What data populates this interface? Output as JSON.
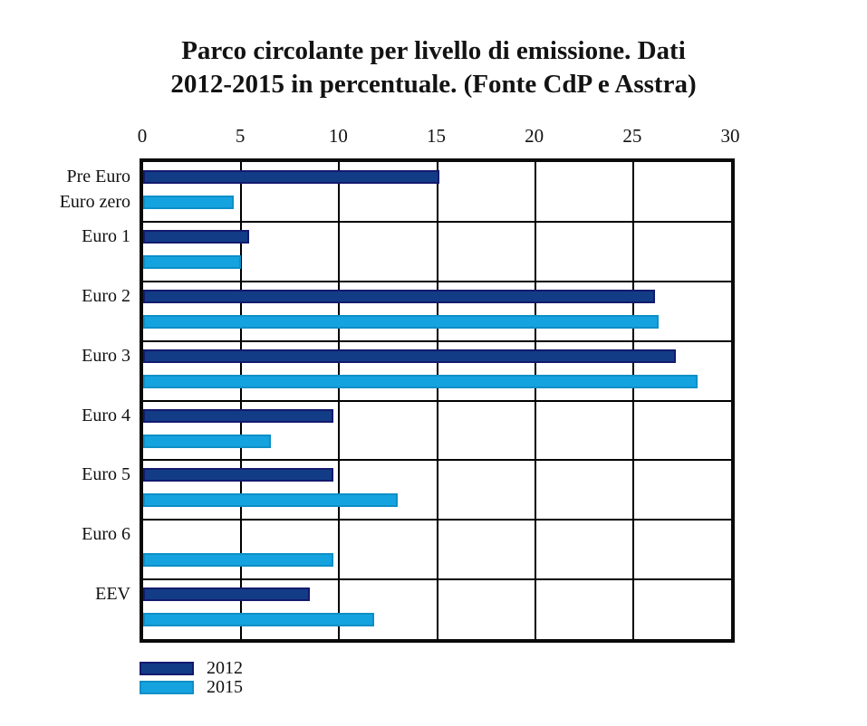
{
  "title_lines": [
    "Parco circolante per livello di emissione. Dati",
    "2012-2015 in percentuale. (Fonte CdP e Asstra)"
  ],
  "chart_data": {
    "type": "bar",
    "orientation": "horizontal",
    "title": "Parco circolante per livello di emissione. Dati 2012-2015 in percentuale. (Fonte CdP e Asstra)",
    "units": "percent",
    "categories": [
      [
        "Pre Euro",
        "Euro zero"
      ],
      [
        "Euro 1"
      ],
      [
        "Euro 2"
      ],
      [
        "Euro 3"
      ],
      [
        "Euro 4"
      ],
      [
        "Euro 5"
      ],
      [
        "Euro 6"
      ],
      [
        "EEV"
      ]
    ],
    "series": [
      {
        "name": "2012",
        "color": "#123c86",
        "border_color": "#141a6e",
        "values": [
          15.1,
          5.4,
          26.1,
          27.2,
          9.7,
          9.7,
          null,
          8.5
        ]
      },
      {
        "name": "2015",
        "color": "#15a3e0",
        "border_color": "#0d8fc6",
        "values": [
          4.6,
          5.0,
          26.3,
          28.3,
          6.5,
          13.0,
          9.7,
          11.8
        ]
      }
    ],
    "x_ticks": [
      0,
      5,
      10,
      15,
      20,
      25,
      30
    ],
    "xlim": [
      0,
      30
    ],
    "grid": true,
    "legend_position": "bottom-left",
    "plot_border_color": "#0a0a0a",
    "grid_color": "#000000",
    "text_color": "#111111"
  }
}
